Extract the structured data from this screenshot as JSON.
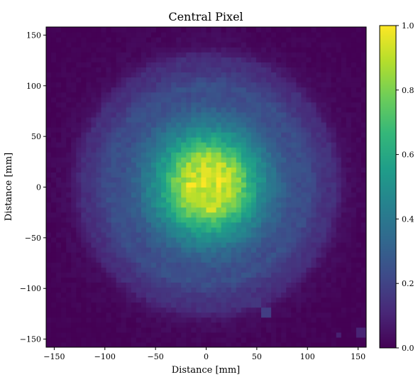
{
  "chart_data": {
    "type": "heatmap",
    "title": "Central Pixel",
    "xlabel": "Distance [mm]",
    "ylabel": "Distance [mm]",
    "xlim": [
      -158,
      158
    ],
    "ylim": [
      -158,
      158
    ],
    "x_ticks": [
      -150,
      -100,
      -50,
      0,
      50,
      100,
      150
    ],
    "y_ticks": [
      -150,
      -100,
      -50,
      0,
      50,
      100,
      150
    ],
    "x_tick_labels": [
      "−150",
      "−100",
      "−50",
      "0",
      "50",
      "100",
      "150"
    ],
    "y_tick_labels": [
      "−150",
      "−100",
      "−50",
      "0",
      "50",
      "100",
      "150"
    ],
    "colormap": "viridis",
    "colorbar": {
      "range": [
        0.0,
        1.0
      ],
      "ticks": [
        0.0,
        0.2,
        0.4,
        0.6,
        0.8,
        1.0
      ],
      "tick_labels": [
        "0.0",
        "0.2",
        "0.4",
        "0.6",
        "0.8",
        "1.0"
      ]
    },
    "grid": false,
    "bins_per_axis": 64,
    "intensity_profile": {
      "center": [
        2,
        3
      ],
      "radial_distance_mm": [
        0,
        10,
        20,
        30,
        40,
        50,
        60,
        70,
        80,
        90,
        100,
        110,
        120,
        130,
        140,
        160,
        200
      ],
      "intensity": [
        0.93,
        0.92,
        0.9,
        0.82,
        0.65,
        0.52,
        0.42,
        0.33,
        0.27,
        0.22,
        0.19,
        0.17,
        0.12,
        0.07,
        0.03,
        0.01,
        0.0
      ]
    },
    "features": [
      {
        "x": -15,
        "y": 2,
        "value": 1.0
      },
      {
        "x": 12,
        "y": 4,
        "value": 1.0
      },
      {
        "x": 0,
        "y": 18,
        "value": 0.96
      },
      {
        "x": 5,
        "y": -22,
        "value": 0.95
      },
      {
        "x": 58,
        "y": -122,
        "value": 0.18
      },
      {
        "x": 48,
        "y": -113,
        "value": 0.16
      },
      {
        "x": 152,
        "y": -144,
        "value": 0.1
      },
      {
        "x": 130,
        "y": -145,
        "value": 0.09
      }
    ]
  }
}
